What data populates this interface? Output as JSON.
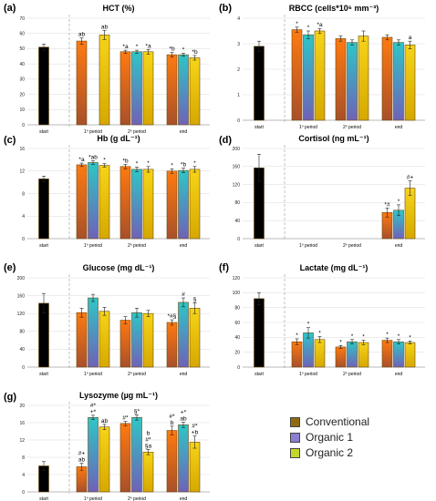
{
  "legend": {
    "items": [
      {
        "label": "Conventional",
        "color": "#8e6b12"
      },
      {
        "label": "Organic 1",
        "color": "#8a7fd0"
      },
      {
        "label": "Organic 2",
        "color": "#c5d62a"
      }
    ]
  },
  "chart_data": [
    {
      "type": "bar",
      "tag": "(a)",
      "title": "HCT (%)",
      "ylim": [
        0,
        70
      ],
      "yticks": [
        0,
        10,
        20,
        30,
        40,
        50,
        60,
        70
      ],
      "categories": [
        "start",
        "1º period",
        "2º period",
        "end"
      ],
      "start": {
        "value": 51,
        "err": 2
      },
      "series": [
        {
          "name": "Conventional",
          "values": [
            55,
            48,
            46
          ],
          "errors": [
            2,
            1,
            1.5
          ]
        },
        {
          "name": "Organic 1",
          "values": [
            null,
            48,
            46
          ],
          "errors": [
            null,
            1,
            1
          ]
        },
        {
          "name": "Organic 2",
          "values": [
            59,
            48,
            44
          ],
          "errors": [
            3,
            1.5,
            1.5
          ]
        }
      ],
      "labels": [
        [
          [
            "ab"
          ],
          [
            "*a"
          ],
          [
            "*b"
          ]
        ],
        [
          [],
          [
            "*"
          ],
          [
            "*"
          ]
        ],
        [
          [
            "ab"
          ],
          [
            "*a"
          ],
          [
            "*b"
          ]
        ]
      ]
    },
    {
      "type": "bar",
      "tag": "(b)",
      "title": "RBCC (cells*10⁶ mm⁻³)",
      "ylim": [
        0,
        4
      ],
      "yticks": [
        0,
        1,
        2,
        3,
        4
      ],
      "categories": [
        "start",
        "1º period",
        "2º period",
        "end"
      ],
      "start": {
        "value": 2.9,
        "err": 0.2
      },
      "series": [
        {
          "name": "Conventional",
          "values": [
            3.55,
            3.2,
            3.25
          ],
          "errors": [
            0.1,
            0.1,
            0.1
          ]
        },
        {
          "name": "Organic 1",
          "values": [
            3.35,
            3.05,
            3.05
          ],
          "errors": [
            0.15,
            0.1,
            0.1
          ]
        },
        {
          "name": "Organic 2",
          "values": [
            3.5,
            3.3,
            2.95
          ],
          "errors": [
            0.1,
            0.2,
            0.15
          ]
        }
      ],
      "labels": [
        [
          [
            "*"
          ],
          [],
          []
        ],
        [
          [
            "*"
          ],
          [],
          []
        ],
        [
          [
            "*a"
          ],
          [],
          [
            "a"
          ]
        ]
      ]
    },
    {
      "type": "bar",
      "tag": "(c)",
      "title": "Hb (g dL⁻¹)",
      "ylim": [
        0,
        16
      ],
      "yticks": [
        0,
        4,
        8,
        12,
        16
      ],
      "categories": [
        "start",
        "1º period",
        "2º period",
        "end"
      ],
      "start": {
        "value": 10.6,
        "err": 0.5
      },
      "series": [
        {
          "name": "Conventional",
          "values": [
            13.1,
            12.8,
            12.0
          ],
          "errors": [
            0.3,
            0.4,
            0.4
          ]
        },
        {
          "name": "Organic 1",
          "values": [
            13.5,
            12.3,
            12.1
          ],
          "errors": [
            0.3,
            0.4,
            0.4
          ]
        },
        {
          "name": "Organic 2",
          "values": [
            13.0,
            12.3,
            12.3
          ],
          "errors": [
            0.3,
            0.5,
            0.5
          ]
        }
      ],
      "labels": [
        [
          [
            "*a"
          ],
          [
            "*b"
          ],
          [
            "*"
          ]
        ],
        [
          [
            "*ab"
          ],
          [
            "*"
          ],
          [
            "*b"
          ]
        ],
        [
          [
            "*"
          ],
          [
            "*"
          ],
          [
            "*"
          ]
        ]
      ]
    },
    {
      "type": "bar",
      "tag": "(d)",
      "title": "Cortisol (ng mL⁻¹)",
      "ylim": [
        0,
        200
      ],
      "yticks": [
        0,
        40,
        80,
        120,
        160,
        200
      ],
      "categories": [
        "start",
        "1º period",
        "2º period",
        "end"
      ],
      "start": {
        "value": 157,
        "err": 30
      },
      "series": [
        {
          "name": "Conventional",
          "values": [
            null,
            null,
            58
          ],
          "errors": [
            null,
            null,
            10
          ]
        },
        {
          "name": "Organic 1",
          "values": [
            null,
            null,
            63
          ],
          "errors": [
            null,
            null,
            12
          ]
        },
        {
          "name": "Organic 2",
          "values": [
            null,
            null,
            112
          ],
          "errors": [
            null,
            null,
            16
          ]
        }
      ],
      "labels": [
        [
          [],
          [],
          [
            "*#"
          ]
        ],
        [
          [],
          [],
          [
            "*"
          ]
        ],
        [
          [],
          [],
          [
            "#+"
          ]
        ]
      ]
    },
    {
      "type": "bar",
      "tag": "(e)",
      "title": "Glucose (mg dL⁻¹)",
      "ylim": [
        0,
        200
      ],
      "yticks": [
        0,
        40,
        80,
        120,
        160,
        200
      ],
      "categories": [
        "start",
        "1º period",
        "2º period",
        "end"
      ],
      "start": {
        "value": 143,
        "err": 22
      },
      "series": [
        {
          "name": "Conventional",
          "values": [
            122,
            105,
            100
          ],
          "errors": [
            10,
            8,
            6
          ]
        },
        {
          "name": "Organic 1",
          "values": [
            155,
            122,
            145
          ],
          "errors": [
            8,
            10,
            10
          ]
        },
        {
          "name": "Organic 2",
          "values": [
            125,
            120,
            132
          ],
          "errors": [
            9,
            7,
            12
          ]
        }
      ],
      "labels": [
        [
          [],
          [],
          [
            "*#§"
          ]
        ],
        [
          [],
          [],
          [
            "#"
          ]
        ],
        [
          [],
          [],
          [
            "§"
          ]
        ]
      ]
    },
    {
      "type": "bar",
      "tag": "(f)",
      "title": "Lactate (mg dL⁻¹)",
      "ylim": [
        0,
        120
      ],
      "yticks": [
        0,
        20,
        40,
        60,
        80,
        100,
        120
      ],
      "categories": [
        "start",
        "1º period",
        "2º period",
        "end"
      ],
      "start": {
        "value": 92,
        "err": 8
      },
      "series": [
        {
          "name": "Conventional",
          "values": [
            34,
            27,
            36
          ],
          "errors": [
            4,
            2,
            3
          ]
        },
        {
          "name": "Organic 1",
          "values": [
            46,
            34,
            34
          ],
          "errors": [
            7,
            3,
            3
          ]
        },
        {
          "name": "Organic 2",
          "values": [
            37,
            33,
            33
          ],
          "errors": [
            4,
            3,
            2
          ]
        }
      ],
      "labels": [
        [
          [
            "*"
          ],
          [
            "*"
          ],
          [
            "*"
          ]
        ],
        [
          [
            "*"
          ],
          [
            "*"
          ],
          [
            "*"
          ]
        ],
        [
          [
            "*"
          ],
          [
            "*"
          ],
          [
            "*"
          ]
        ]
      ]
    },
    {
      "type": "bar",
      "tag": "(g)",
      "title": "Lysozyme (µg mL⁻¹)",
      "ylim": [
        0,
        20
      ],
      "yticks": [
        0,
        4,
        8,
        12,
        16,
        20
      ],
      "categories": [
        "start",
        "1º period",
        "2º period",
        "end"
      ],
      "start": {
        "value": 6,
        "err": 1
      },
      "series": [
        {
          "name": "Conventional",
          "values": [
            5.8,
            15.8,
            14.2
          ],
          "errors": [
            0.8,
            0.5,
            1.0
          ]
        },
        {
          "name": "Organic 1",
          "values": [
            17.2,
            17.2,
            15.5
          ],
          "errors": [
            0.5,
            0.6,
            0.6
          ]
        },
        {
          "name": "Organic 2",
          "values": [
            15.0,
            9.2,
            11.5
          ],
          "errors": [
            0.6,
            0.6,
            1.4
          ]
        }
      ],
      "labels": [
        [
          [
            "ab",
            "#+"
          ],
          [
            "#*"
          ],
          [
            "b",
            "#*"
          ]
        ],
        [
          [
            "+*",
            "#*"
          ],
          [
            "§*"
          ],
          [
            "ab",
            "+*"
          ]
        ],
        [
          [
            "ab"
          ],
          [
            "§a",
            "#*",
            "b"
          ],
          [
            "+b",
            "#*"
          ]
        ]
      ]
    }
  ]
}
